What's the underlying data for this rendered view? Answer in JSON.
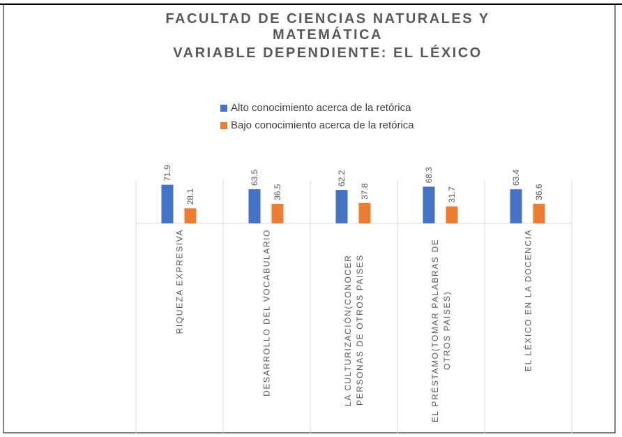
{
  "chart_data": {
    "type": "bar",
    "title": "FACULTAD DE CIENCIAS NATURALES Y MATEMÁTICA",
    "subtitle": "VARIABLE DEPENDIENTE: EL LÉXICO",
    "categories": [
      "RIQUEZA EXPRESIVA",
      "DESARROLLO DEL VOCABULARIO",
      "LA CULTURIZACIÓN(CONOCER PERSONAS DE OTROS PAISES",
      "EL PRÉSTAMO(TOMAR PALABRAS DE OTROS PAISES)",
      "EL LÉXICO EN LA DOCENCIA"
    ],
    "series": [
      {
        "name": "Alto conocimiento acerca de la retórica",
        "color": "#4472c4",
        "values": [
          71.9,
          63.5,
          62.2,
          68.3,
          63.4
        ]
      },
      {
        "name": "Bajo conocimiento acerca de la retórica",
        "color": "#ed7d31",
        "values": [
          28.1,
          36.5,
          37.8,
          31.7,
          36.6
        ]
      }
    ]
  }
}
